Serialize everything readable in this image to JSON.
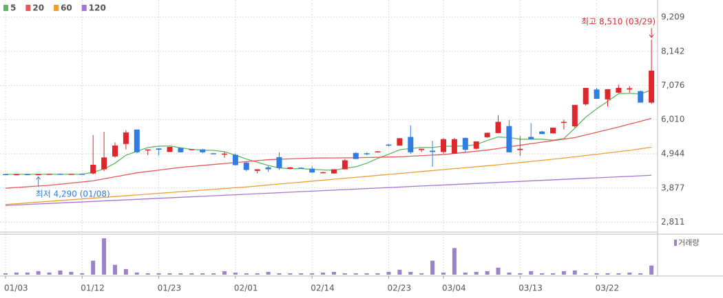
{
  "chart_data": {
    "type": "candlestick",
    "categories": [
      "01/03",
      null,
      null,
      null,
      null,
      null,
      null,
      "01/12",
      null,
      null,
      null,
      null,
      null,
      null,
      "01/23",
      null,
      null,
      null,
      null,
      null,
      null,
      "02/01",
      null,
      null,
      null,
      null,
      null,
      null,
      "02/14",
      null,
      null,
      null,
      null,
      null,
      null,
      "02/23",
      null,
      null,
      null,
      null,
      "03/04",
      null,
      null,
      null,
      null,
      null,
      null,
      "03/13",
      null,
      null,
      null,
      null,
      null,
      null,
      "03/22",
      null,
      null,
      null,
      null,
      null
    ],
    "open": [
      4310,
      4300,
      4310,
      4300,
      4300,
      4320,
      4310,
      4320,
      4330,
      4460,
      4860,
      5250,
      5700,
      5050,
      5110,
      5000,
      5130,
      5060,
      5080,
      4960,
      4940,
      4910,
      4670,
      4410,
      4520,
      4840,
      4470,
      4510,
      4480,
      4350,
      4330,
      4460,
      4970,
      4960,
      5000,
      5230,
      5200,
      5470,
      5060,
      5040,
      5000,
      4950,
      5440,
      5100,
      5460,
      5590,
      5810,
      5060,
      5470,
      5640,
      5580,
      5920,
      5800,
      6490,
      6950,
      6640,
      6850,
      6950,
      6900,
      6540
    ],
    "high": [
      4320,
      4310,
      4320,
      4310,
      4320,
      4330,
      4320,
      4330,
      5530,
      5630,
      5300,
      5680,
      5700,
      5080,
      5120,
      5160,
      5130,
      5090,
      5100,
      4970,
      5010,
      4960,
      4690,
      4460,
      4560,
      4990,
      4530,
      4520,
      4560,
      4380,
      4460,
      4780,
      4990,
      4990,
      5030,
      5250,
      5430,
      5830,
      5100,
      5350,
      5430,
      5440,
      5450,
      5330,
      5600,
      6150,
      6000,
      5500,
      5900,
      5660,
      5760,
      6010,
      6470,
      7000,
      7000,
      6960,
      7100,
      7060,
      6920,
      8510
    ],
    "low": [
      4300,
      4300,
      4300,
      4290,
      4300,
      4300,
      4300,
      4300,
      4300,
      4400,
      4820,
      5080,
      4960,
      4900,
      4900,
      5000,
      4990,
      5050,
      4960,
      4940,
      4820,
      4580,
      4400,
      4330,
      4380,
      4440,
      4460,
      4480,
      4350,
      4340,
      4320,
      4460,
      4780,
      4900,
      4990,
      5180,
      5200,
      4940,
      5000,
      4540,
      4950,
      4940,
      5000,
      5080,
      5440,
      5580,
      4990,
      4880,
      5400,
      5560,
      5580,
      5700,
      5760,
      6450,
      6660,
      6420,
      6840,
      6850,
      6540,
      6500
    ],
    "close": [
      4300,
      4310,
      4300,
      4310,
      4320,
      4310,
      4320,
      4310,
      4600,
      4830,
      5200,
      5610,
      4990,
      5080,
      5070,
      5160,
      4990,
      5090,
      4990,
      4950,
      4950,
      4590,
      4440,
      4460,
      4460,
      4500,
      4520,
      4490,
      4360,
      4370,
      4460,
      4740,
      4780,
      4930,
      5020,
      5200,
      5430,
      4990,
      5100,
      5000,
      5400,
      5400,
      5070,
      5330,
      5600,
      5940,
      4990,
      5100,
      5400,
      5560,
      5760,
      5940,
      6470,
      7000,
      6660,
      6960,
      7000,
      6990,
      6540,
      7540
    ],
    "up_color": "#e0262d",
    "down_color": "#2f7de1",
    "moving_averages": [
      {
        "name": "5",
        "color": "#5cb85c",
        "values": [
          4305,
          4305,
          4305,
          4305,
          4305,
          4305,
          4305,
          4305,
          4370,
          4470,
          4650,
          4900,
          5020,
          5140,
          5180,
          5190,
          5130,
          5080,
          5060,
          5050,
          5010,
          4900,
          4780,
          4680,
          4580,
          4500,
          4480,
          4480,
          4460,
          4440,
          4430,
          4490,
          4540,
          4650,
          4800,
          4930,
          5070,
          5110,
          5140,
          5140,
          5180,
          5180,
          5190,
          5230,
          5360,
          5470,
          5450,
          5400,
          5400,
          5400,
          5370,
          5420,
          5740,
          6090,
          6350,
          6580,
          6820,
          6830,
          6810,
          6940
        ]
      },
      {
        "name": "20",
        "color": "#e8565a",
        "values": [
          3870,
          3893,
          3915,
          3938,
          3960,
          3995,
          4030,
          4065,
          4100,
          4163,
          4225,
          4288,
          4350,
          4393,
          4435,
          4478,
          4520,
          4550,
          4580,
          4610,
          4640,
          4670,
          4700,
          4730,
          4760,
          4773,
          4785,
          4798,
          4810,
          4813,
          4815,
          4818,
          4820,
          4828,
          4835,
          4843,
          4850,
          4868,
          4885,
          4903,
          4920,
          4955,
          4990,
          5025,
          5060,
          5110,
          5160,
          5210,
          5260,
          5308,
          5355,
          5403,
          5450,
          5533,
          5615,
          5698,
          5780,
          5870,
          5960,
          6050
        ]
      },
      {
        "name": "60",
        "color": "#f39c34",
        "values": [
          3360,
          3385,
          3410,
          3435,
          3460,
          3485,
          3510,
          3535,
          3560,
          3585,
          3610,
          3635,
          3660,
          3685,
          3710,
          3735,
          3760,
          3785,
          3810,
          3835,
          3860,
          3885,
          3910,
          3940,
          3970,
          4000,
          4030,
          4060,
          4090,
          4120,
          4150,
          4180,
          4210,
          4240,
          4270,
          4300,
          4330,
          4360,
          4390,
          4420,
          4450,
          4480,
          4510,
          4540,
          4570,
          4600,
          4635,
          4670,
          4705,
          4740,
          4775,
          4810,
          4850,
          4890,
          4930,
          4970,
          5010,
          5050,
          5100,
          5150
        ]
      },
      {
        "name": "120",
        "color": "#a574d8",
        "values": [
          3330,
          3346,
          3362,
          3378,
          3394,
          3410,
          3426,
          3442,
          3458,
          3474,
          3490,
          3506,
          3522,
          3538,
          3554,
          3570,
          3586,
          3602,
          3618,
          3634,
          3650,
          3666,
          3682,
          3698,
          3714,
          3730,
          3746,
          3762,
          3778,
          3794,
          3810,
          3826,
          3842,
          3858,
          3874,
          3890,
          3906,
          3922,
          3938,
          3954,
          3970,
          3986,
          4002,
          4018,
          4034,
          4050,
          4066,
          4082,
          4098,
          4114,
          4130,
          4146,
          4162,
          4178,
          4194,
          4210,
          4226,
          4242,
          4258,
          4274
        ]
      }
    ],
    "volume": {
      "name": "거래량",
      "color": "#9b83c9",
      "ylim": [
        0,
        55
      ],
      "values": [
        2,
        3,
        3,
        5,
        3,
        6,
        4,
        2,
        20,
        52,
        14,
        8,
        3,
        2,
        2,
        2,
        2,
        2,
        2,
        2,
        5,
        3,
        2,
        2,
        4,
        2,
        2,
        2,
        2,
        3,
        4,
        2,
        2,
        2,
        2,
        4,
        7,
        4,
        2,
        20,
        3,
        38,
        3,
        4,
        5,
        10,
        3,
        2,
        5,
        2,
        2,
        5,
        6,
        2,
        2,
        2,
        2,
        3,
        2,
        13
      ]
    },
    "ylim": [
      2500,
      9530
    ],
    "yticks": [
      {
        "value": 2811,
        "label": "2,811"
      },
      {
        "value": 3877,
        "label": "3,877"
      },
      {
        "value": 4944,
        "label": "4,944"
      },
      {
        "value": 6010,
        "label": "6,010"
      },
      {
        "value": 7076,
        "label": "7,076"
      },
      {
        "value": 8142,
        "label": "8,142"
      },
      {
        "value": 9209,
        "label": "9,209"
      }
    ],
    "grid": true,
    "high_annotation": {
      "text": "최고 8,510 (03/29)",
      "color": "#e0262d"
    },
    "low_annotation": {
      "text": "최저 4,290 (01/08)",
      "color": "#2f7de1"
    }
  }
}
